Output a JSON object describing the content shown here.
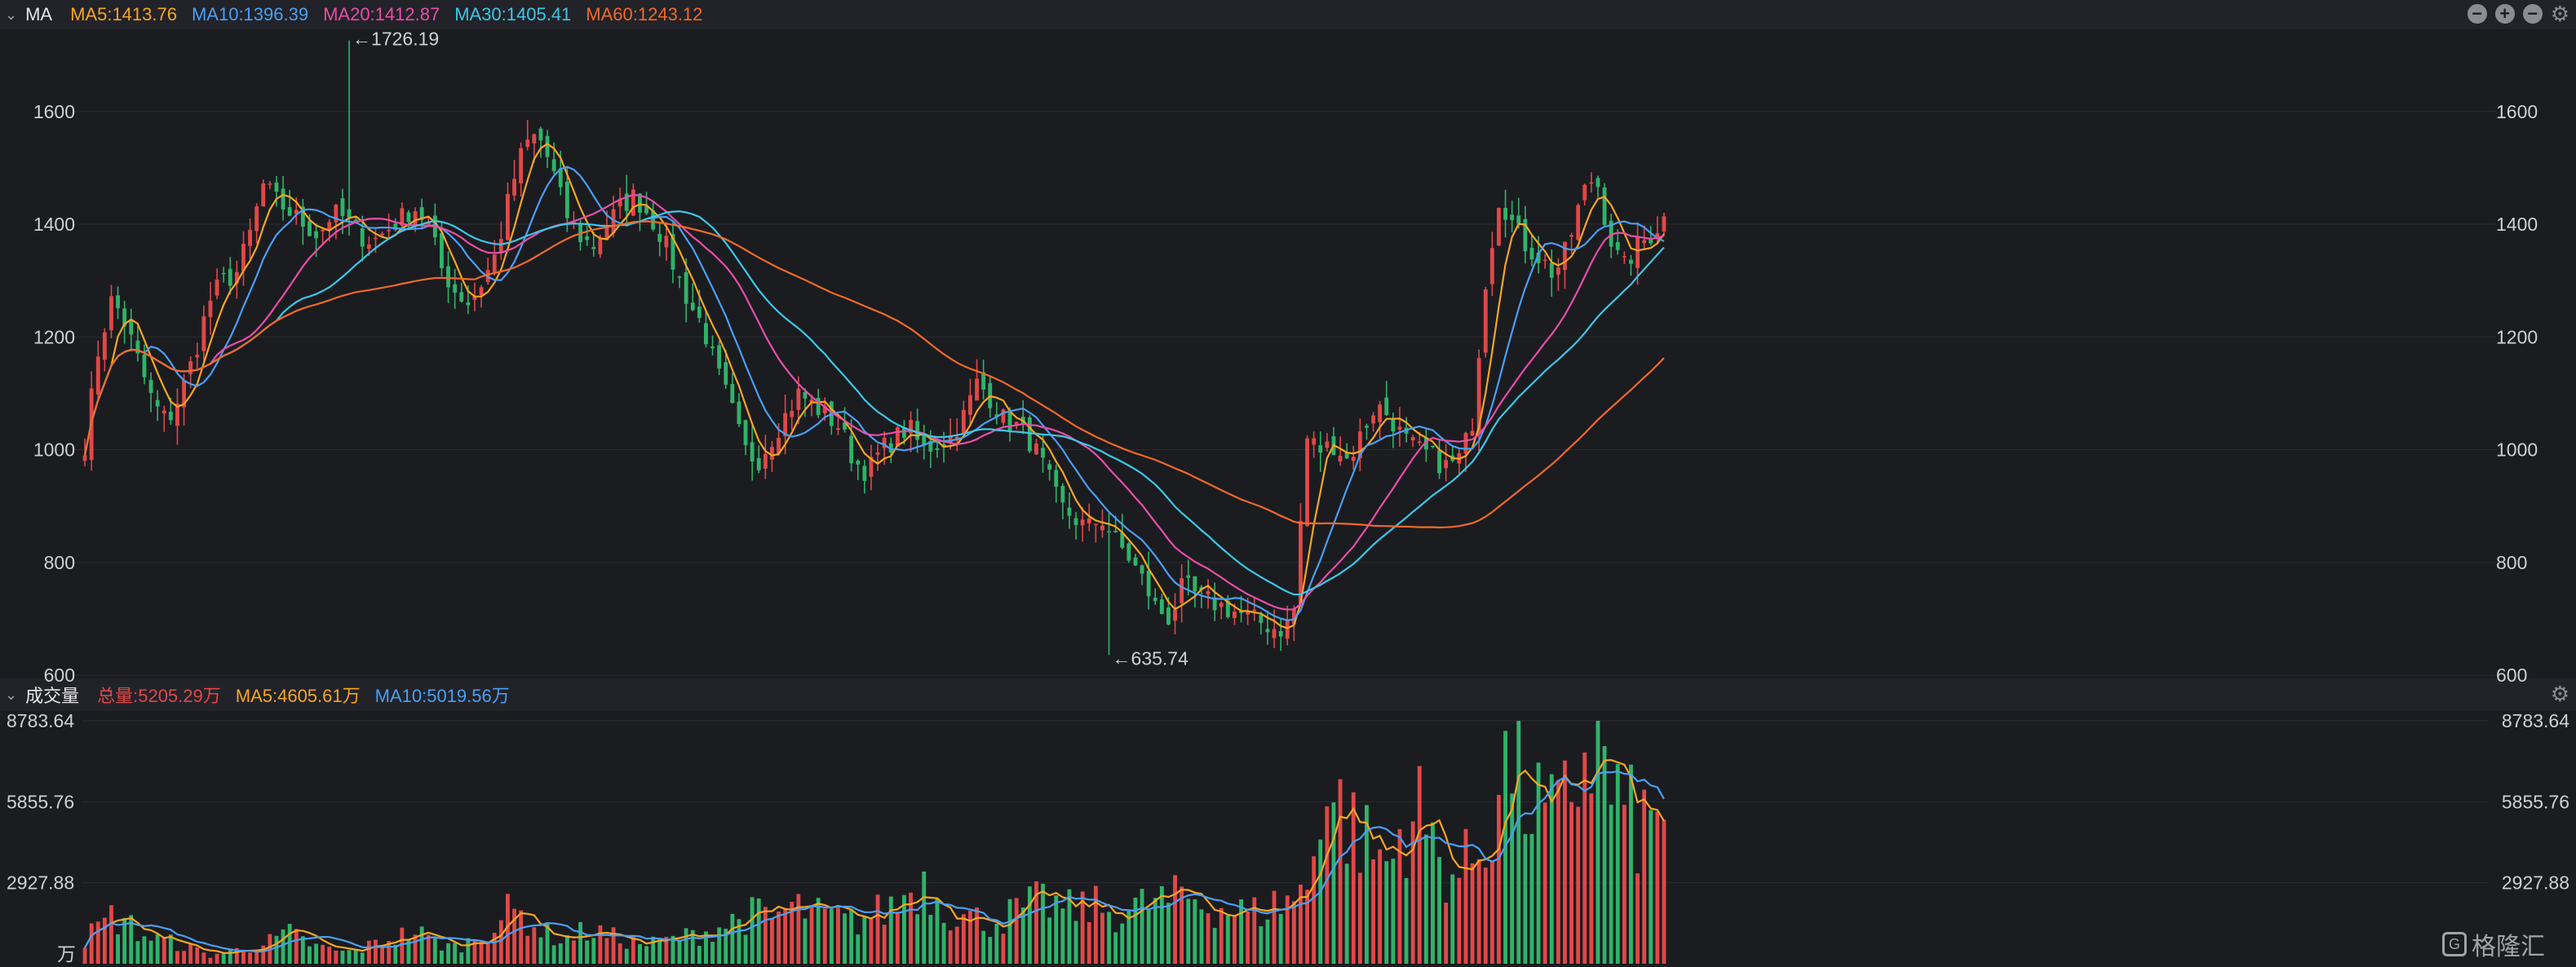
{
  "price_legend": {
    "title": "MA",
    "items": [
      {
        "label": "MA5:1413.76",
        "color": "#f5a623"
      },
      {
        "label": "MA10:1396.39",
        "color": "#4a9ff5"
      },
      {
        "label": "MA20:1412.87",
        "color": "#e84ea8"
      },
      {
        "label": "MA30:1405.41",
        "color": "#3cc7e8"
      },
      {
        "label": "MA60:1243.12",
        "color": "#f06a2a"
      }
    ]
  },
  "volume_legend": {
    "title": "成交量",
    "items": [
      {
        "label": "总量:5205.29万",
        "color": "#e04848"
      },
      {
        "label": "MA5:4605.61万",
        "color": "#f5a623"
      },
      {
        "label": "MA10:5019.56万",
        "color": "#4a9ff5"
      }
    ]
  },
  "icons": [
    "minus-circle-icon",
    "plus-circle-icon",
    "minus-circle-icon",
    "gear-icon"
  ],
  "watermark": "格隆汇",
  "chart_data": [
    {
      "type": "candlestick",
      "title": "",
      "price_axis_ticks": [
        "1600",
        "1400",
        "1200",
        "1000",
        "800",
        "600"
      ],
      "ylim": [
        600,
        1740
      ],
      "annotations": [
        {
          "label": "←1726.19",
          "value": 1726.19,
          "kind": "high"
        },
        {
          "label": "←635.74",
          "value": 635.74,
          "kind": "low"
        }
      ],
      "close_path": [
        1010,
        1180,
        1270,
        1220,
        1150,
        1080,
        1050,
        1100,
        1170,
        1260,
        1300,
        1310,
        1380,
        1470,
        1440,
        1420,
        1400,
        1380,
        1420,
        1410,
        1380,
        1370,
        1390,
        1410,
        1430,
        1400,
        1320,
        1280,
        1260,
        1300,
        1350,
        1460,
        1540,
        1560,
        1500,
        1420,
        1380,
        1360,
        1400,
        1430,
        1450,
        1420,
        1380,
        1320,
        1260,
        1220,
        1140,
        1080,
        1000,
        980,
        1020,
        1060,
        1100,
        1080,
        1060,
        1040,
        980,
        960,
        1000,
        1020,
        1040,
        1000,
        1010,
        1020,
        1060,
        1120,
        1090,
        1050,
        1040,
        1010,
        960,
        900,
        880,
        860,
        880,
        840,
        810,
        770,
        720,
        700,
        760,
        740,
        730,
        720,
        710,
        700,
        690,
        680,
        700,
        1020,
        1000,
        1010,
        980,
        1030,
        1080,
        1060,
        1020,
        1000,
        990,
        970,
        980,
        1040,
        1300,
        1450,
        1400,
        1360,
        1340,
        1310,
        1360,
        1450,
        1490,
        1380,
        1320,
        1360,
        1380,
        1410
      ],
      "series": [
        {
          "name": "MA5",
          "color": "#f5a623",
          "latest": 1413.76
        },
        {
          "name": "MA10",
          "color": "#4a9ff5",
          "latest": 1396.39
        },
        {
          "name": "MA20",
          "color": "#e84ea8",
          "latest": 1412.87
        },
        {
          "name": "MA30",
          "color": "#3cc7e8",
          "latest": 1405.41
        },
        {
          "name": "MA60",
          "color": "#f06a2a",
          "latest": 1243.12
        }
      ]
    },
    {
      "type": "bar",
      "title": "",
      "unit": "万",
      "volume_axis_ticks": [
        "8783.64",
        "5855.76",
        "2927.88"
      ],
      "ylim": [
        0,
        8783.64
      ],
      "volume_path": [
        900,
        1300,
        1700,
        1500,
        1100,
        900,
        800,
        700,
        500,
        300,
        400,
        500,
        600,
        700,
        900,
        1100,
        800,
        600,
        500,
        400,
        500,
        700,
        900,
        1000,
        1200,
        900,
        700,
        600,
        800,
        1100,
        1500,
        1900,
        1700,
        1300,
        1000,
        900,
        1100,
        1200,
        1000,
        900,
        800,
        700,
        800,
        900,
        1000,
        1100,
        1300,
        1500,
        1700,
        1800,
        1600,
        1900,
        2000,
        1800,
        1700,
        1600,
        1500,
        1700,
        1900,
        2100,
        2600,
        3000,
        2500,
        1900,
        1700,
        1600,
        1500,
        1700,
        1900,
        2100,
        2300,
        2000,
        1900,
        2100,
        2000,
        1800,
        1900,
        2100,
        2300,
        2200,
        2500,
        2300,
        2100,
        2000,
        1900,
        1800,
        2000,
        2200,
        2400,
        2600,
        6500,
        5800,
        5200,
        4500,
        4000,
        3500,
        5000,
        5600,
        4500,
        3500,
        3200,
        3800,
        4500,
        6500,
        7500,
        6000,
        5500,
        5000,
        5800,
        7500,
        8200,
        6500,
        5500,
        5000,
        4900,
        5205.29
      ],
      "series": [
        {
          "name": "总量",
          "color": "#e04848",
          "latest": 5205.29
        },
        {
          "name": "MA5",
          "color": "#f5a623",
          "latest": 4605.61
        },
        {
          "name": "MA10",
          "color": "#4a9ff5",
          "latest": 5019.56
        }
      ],
      "colors": {
        "up": "#e04848",
        "down": "#2fb36a"
      }
    }
  ]
}
